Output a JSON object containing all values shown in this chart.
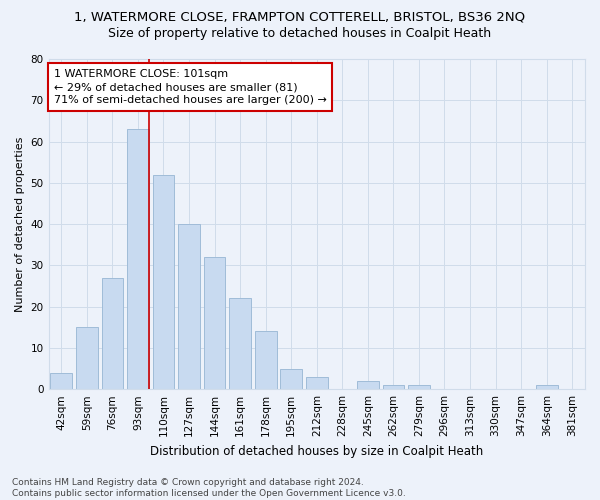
{
  "title1": "1, WATERMORE CLOSE, FRAMPTON COTTERELL, BRISTOL, BS36 2NQ",
  "title2": "Size of property relative to detached houses in Coalpit Heath",
  "xlabel": "Distribution of detached houses by size in Coalpit Heath",
  "ylabel": "Number of detached properties",
  "categories": [
    "42sqm",
    "59sqm",
    "76sqm",
    "93sqm",
    "110sqm",
    "127sqm",
    "144sqm",
    "161sqm",
    "178sqm",
    "195sqm",
    "212sqm",
    "228sqm",
    "245sqm",
    "262sqm",
    "279sqm",
    "296sqm",
    "313sqm",
    "330sqm",
    "347sqm",
    "364sqm",
    "381sqm"
  ],
  "values": [
    4,
    15,
    27,
    63,
    52,
    40,
    32,
    22,
    14,
    5,
    3,
    0,
    2,
    1,
    1,
    0,
    0,
    0,
    0,
    1,
    0
  ],
  "bar_color": "#c8daf0",
  "bar_edge_color": "#a0bcd8",
  "grid_color": "#d0dcea",
  "background_color": "#edf2fa",
  "vline_color": "#cc0000",
  "vline_x": 3.42,
  "annotation_text": "1 WATERMORE CLOSE: 101sqm\n← 29% of detached houses are smaller (81)\n71% of semi-detached houses are larger (200) →",
  "annotation_box_color": "#ffffff",
  "annotation_box_edge": "#cc0000",
  "ylim": [
    0,
    80
  ],
  "yticks": [
    0,
    10,
    20,
    30,
    40,
    50,
    60,
    70,
    80
  ],
  "footnote": "Contains HM Land Registry data © Crown copyright and database right 2024.\nContains public sector information licensed under the Open Government Licence v3.0.",
  "title1_fontsize": 9.5,
  "title2_fontsize": 9,
  "xlabel_fontsize": 8.5,
  "ylabel_fontsize": 8,
  "tick_fontsize": 7.5,
  "annotation_fontsize": 8,
  "footnote_fontsize": 6.5
}
